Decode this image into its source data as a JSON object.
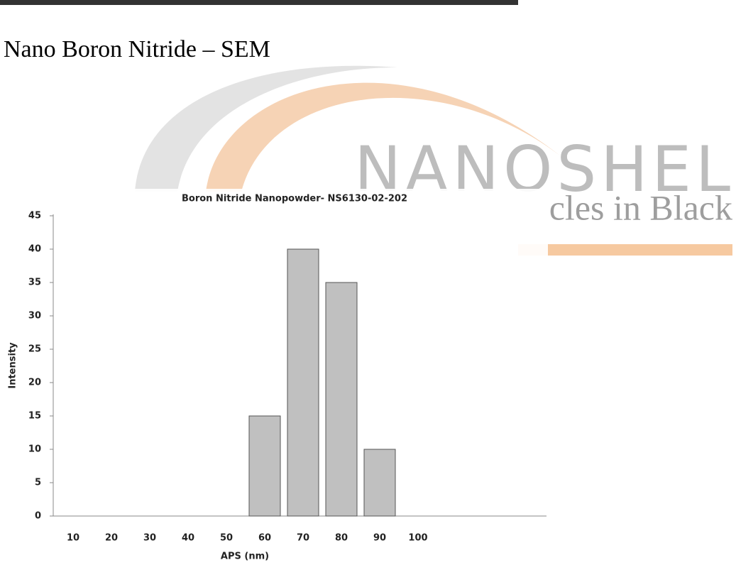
{
  "heading": "Nano Boron Nitride – SEM",
  "watermark": {
    "brand": "NANOSHEL",
    "tagline": "cles in Black"
  },
  "chart_data": {
    "type": "bar",
    "title": "Boron Nitride Nanopowder- NS6130-02-202",
    "x_label": "APS (nm)",
    "y_label": "Intensity",
    "categories": [
      "10",
      "20",
      "30",
      "40",
      "50",
      "60",
      "70",
      "80",
      "90",
      "100"
    ],
    "values": [
      0,
      0,
      0,
      0,
      0,
      15,
      40,
      35,
      10,
      0
    ],
    "color": "#c0c0c0",
    "ylim": [
      0,
      45
    ],
    "yticks": [
      0,
      5,
      10,
      15,
      20,
      25,
      30,
      35,
      40,
      45
    ],
    "grid": false
  }
}
